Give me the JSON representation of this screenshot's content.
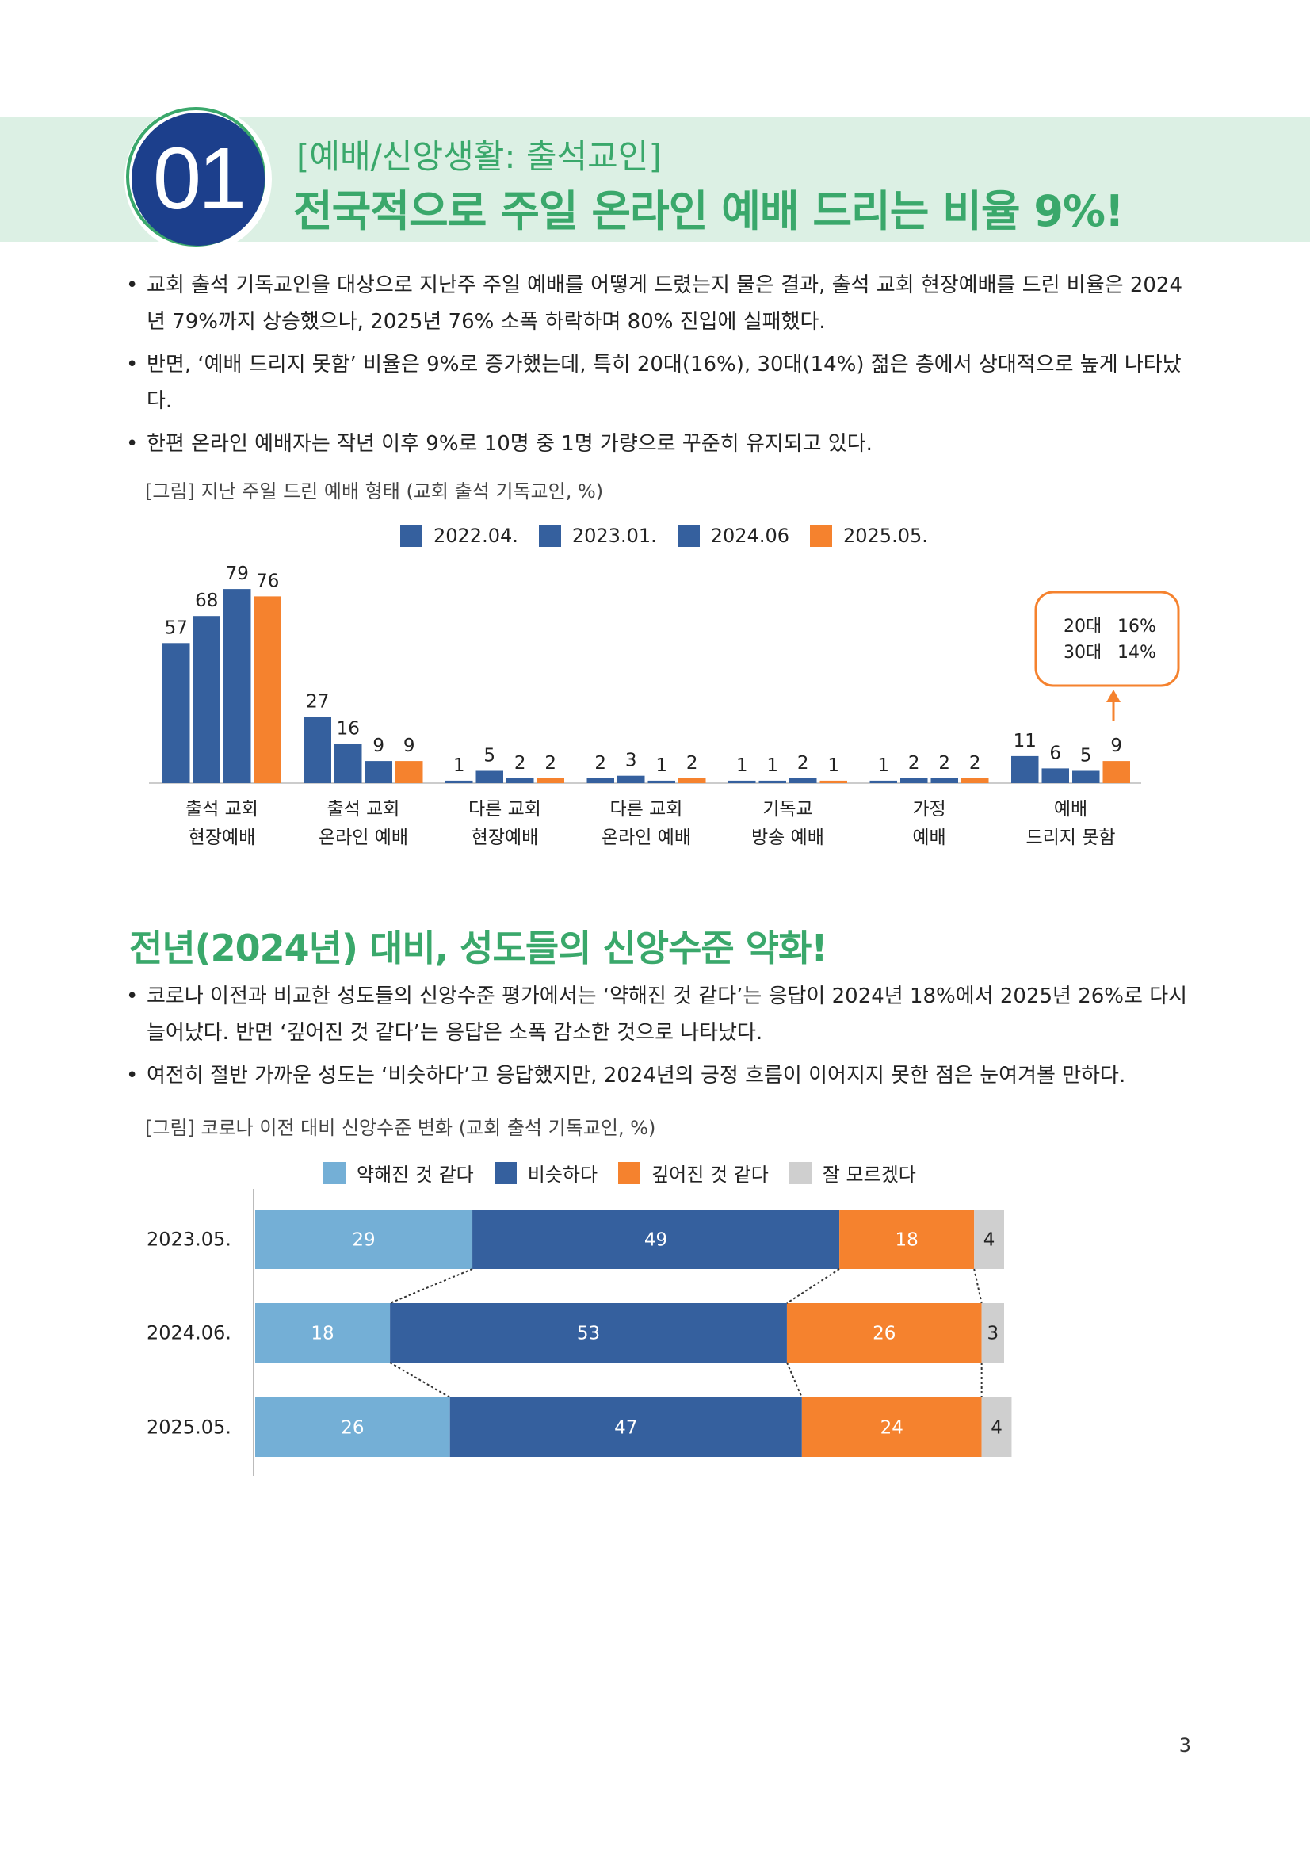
{
  "header": {
    "number": "01",
    "subtitle": "[예배/신앙생활: 출석교인]",
    "title": "전국적으로 주일 온라인 예배 드리는 비율 9%!"
  },
  "section1": {
    "bullets": [
      "교회 출석 기독교인을 대상으로 지난주 주일 예배를 어떻게 드렸는지 물은 결과, 출석 교회 현장예배를 드린 비율은 2024년 79%까지 상승했으나, 2025년 76% 소폭 하락하며 80% 진입에 실패했다.",
      "반면, ‘예배 드리지 못함’ 비율은 9%로 증가했는데, 특히 20대(16%), 30대(14%) 젊은 층에서 상대적으로 높게 나타났다.",
      "한편 온라인 예배자는 작년 이후 9%로 10명 중 1명 가량으로 꾸준히 유지되고 있다."
    ],
    "caption": "[그림] 지난 주일 드린 예배 형태 (교회 출석 기독교인, %)"
  },
  "section2": {
    "title": "전년(2024년) 대비, 성도들의 신앙수준 약화!",
    "bullets": [
      "코로나 이전과 비교한 성도들의 신앙수준 평가에서는 ‘약해진 것 같다’는 응답이 2024년 18%에서 2025년 26%로 다시 늘어났다. 반면 ‘깊어진 것 같다’는 응답은 소폭 감소한 것으로 나타났다.",
      "여전히 절반 가까운 성도는 ‘비슷하다’고 응답했지만, 2024년의 긍정 흐름이 이어지지 못한 점은 눈여겨볼 만하다."
    ],
    "caption": "[그림] 코로나 이전 대비 신앙수준 변화 (교회 출석 기독교인, %)"
  },
  "page_number": "3",
  "chart_data": [
    {
      "type": "bar",
      "title": "지난 주일 드린 예배 형태 (교회 출석 기독교인, %)",
      "categories": [
        [
          "출석 교회",
          "현장예배"
        ],
        [
          "출석 교회",
          "온라인 예배"
        ],
        [
          "다른 교회",
          "현장예배"
        ],
        [
          "다른 교회",
          "온라인 예배"
        ],
        [
          "기독교",
          "방송 예배"
        ],
        [
          "가정",
          "예배"
        ],
        [
          "예배",
          "드리지 못함"
        ]
      ],
      "series": [
        {
          "name": "2022.04.",
          "color": "#35609e",
          "values": [
            57,
            27,
            1,
            2,
            1,
            1,
            11
          ]
        },
        {
          "name": "2023.01.",
          "color": "#35609e",
          "values": [
            68,
            16,
            5,
            3,
            1,
            2,
            6
          ]
        },
        {
          "name": "2024.06",
          "color": "#35609e",
          "values": [
            79,
            9,
            2,
            1,
            2,
            2,
            5
          ]
        },
        {
          "name": "2025.05.",
          "color": "#f5822e",
          "values": [
            76,
            9,
            2,
            2,
            1,
            2,
            9
          ]
        }
      ],
      "ylim": [
        0,
        80
      ],
      "annotation": {
        "rows": [
          {
            "label": "20대",
            "value": "16%"
          },
          {
            "label": "30대",
            "value": "14%"
          }
        ],
        "color": "#f5822e"
      }
    },
    {
      "type": "bar",
      "orientation": "horizontal-stacked",
      "title": "코로나 이전 대비 신앙수준 변화 (교회 출석 기독교인, %)",
      "categories": [
        "2023.05.",
        "2024.06.",
        "2025.05."
      ],
      "series": [
        {
          "name": "약해진 것 같다",
          "color": "#74afd6",
          "values": [
            29,
            18,
            26
          ]
        },
        {
          "name": "비슷하다",
          "color": "#35609e",
          "values": [
            49,
            53,
            47
          ]
        },
        {
          "name": "깊어진 것 같다",
          "color": "#f5822e",
          "values": [
            18,
            26,
            24
          ]
        },
        {
          "name": "잘 모르겠다",
          "color": "#cfcfcf",
          "values": [
            4,
            3,
            4
          ]
        }
      ],
      "xlim": [
        0,
        100
      ]
    }
  ]
}
